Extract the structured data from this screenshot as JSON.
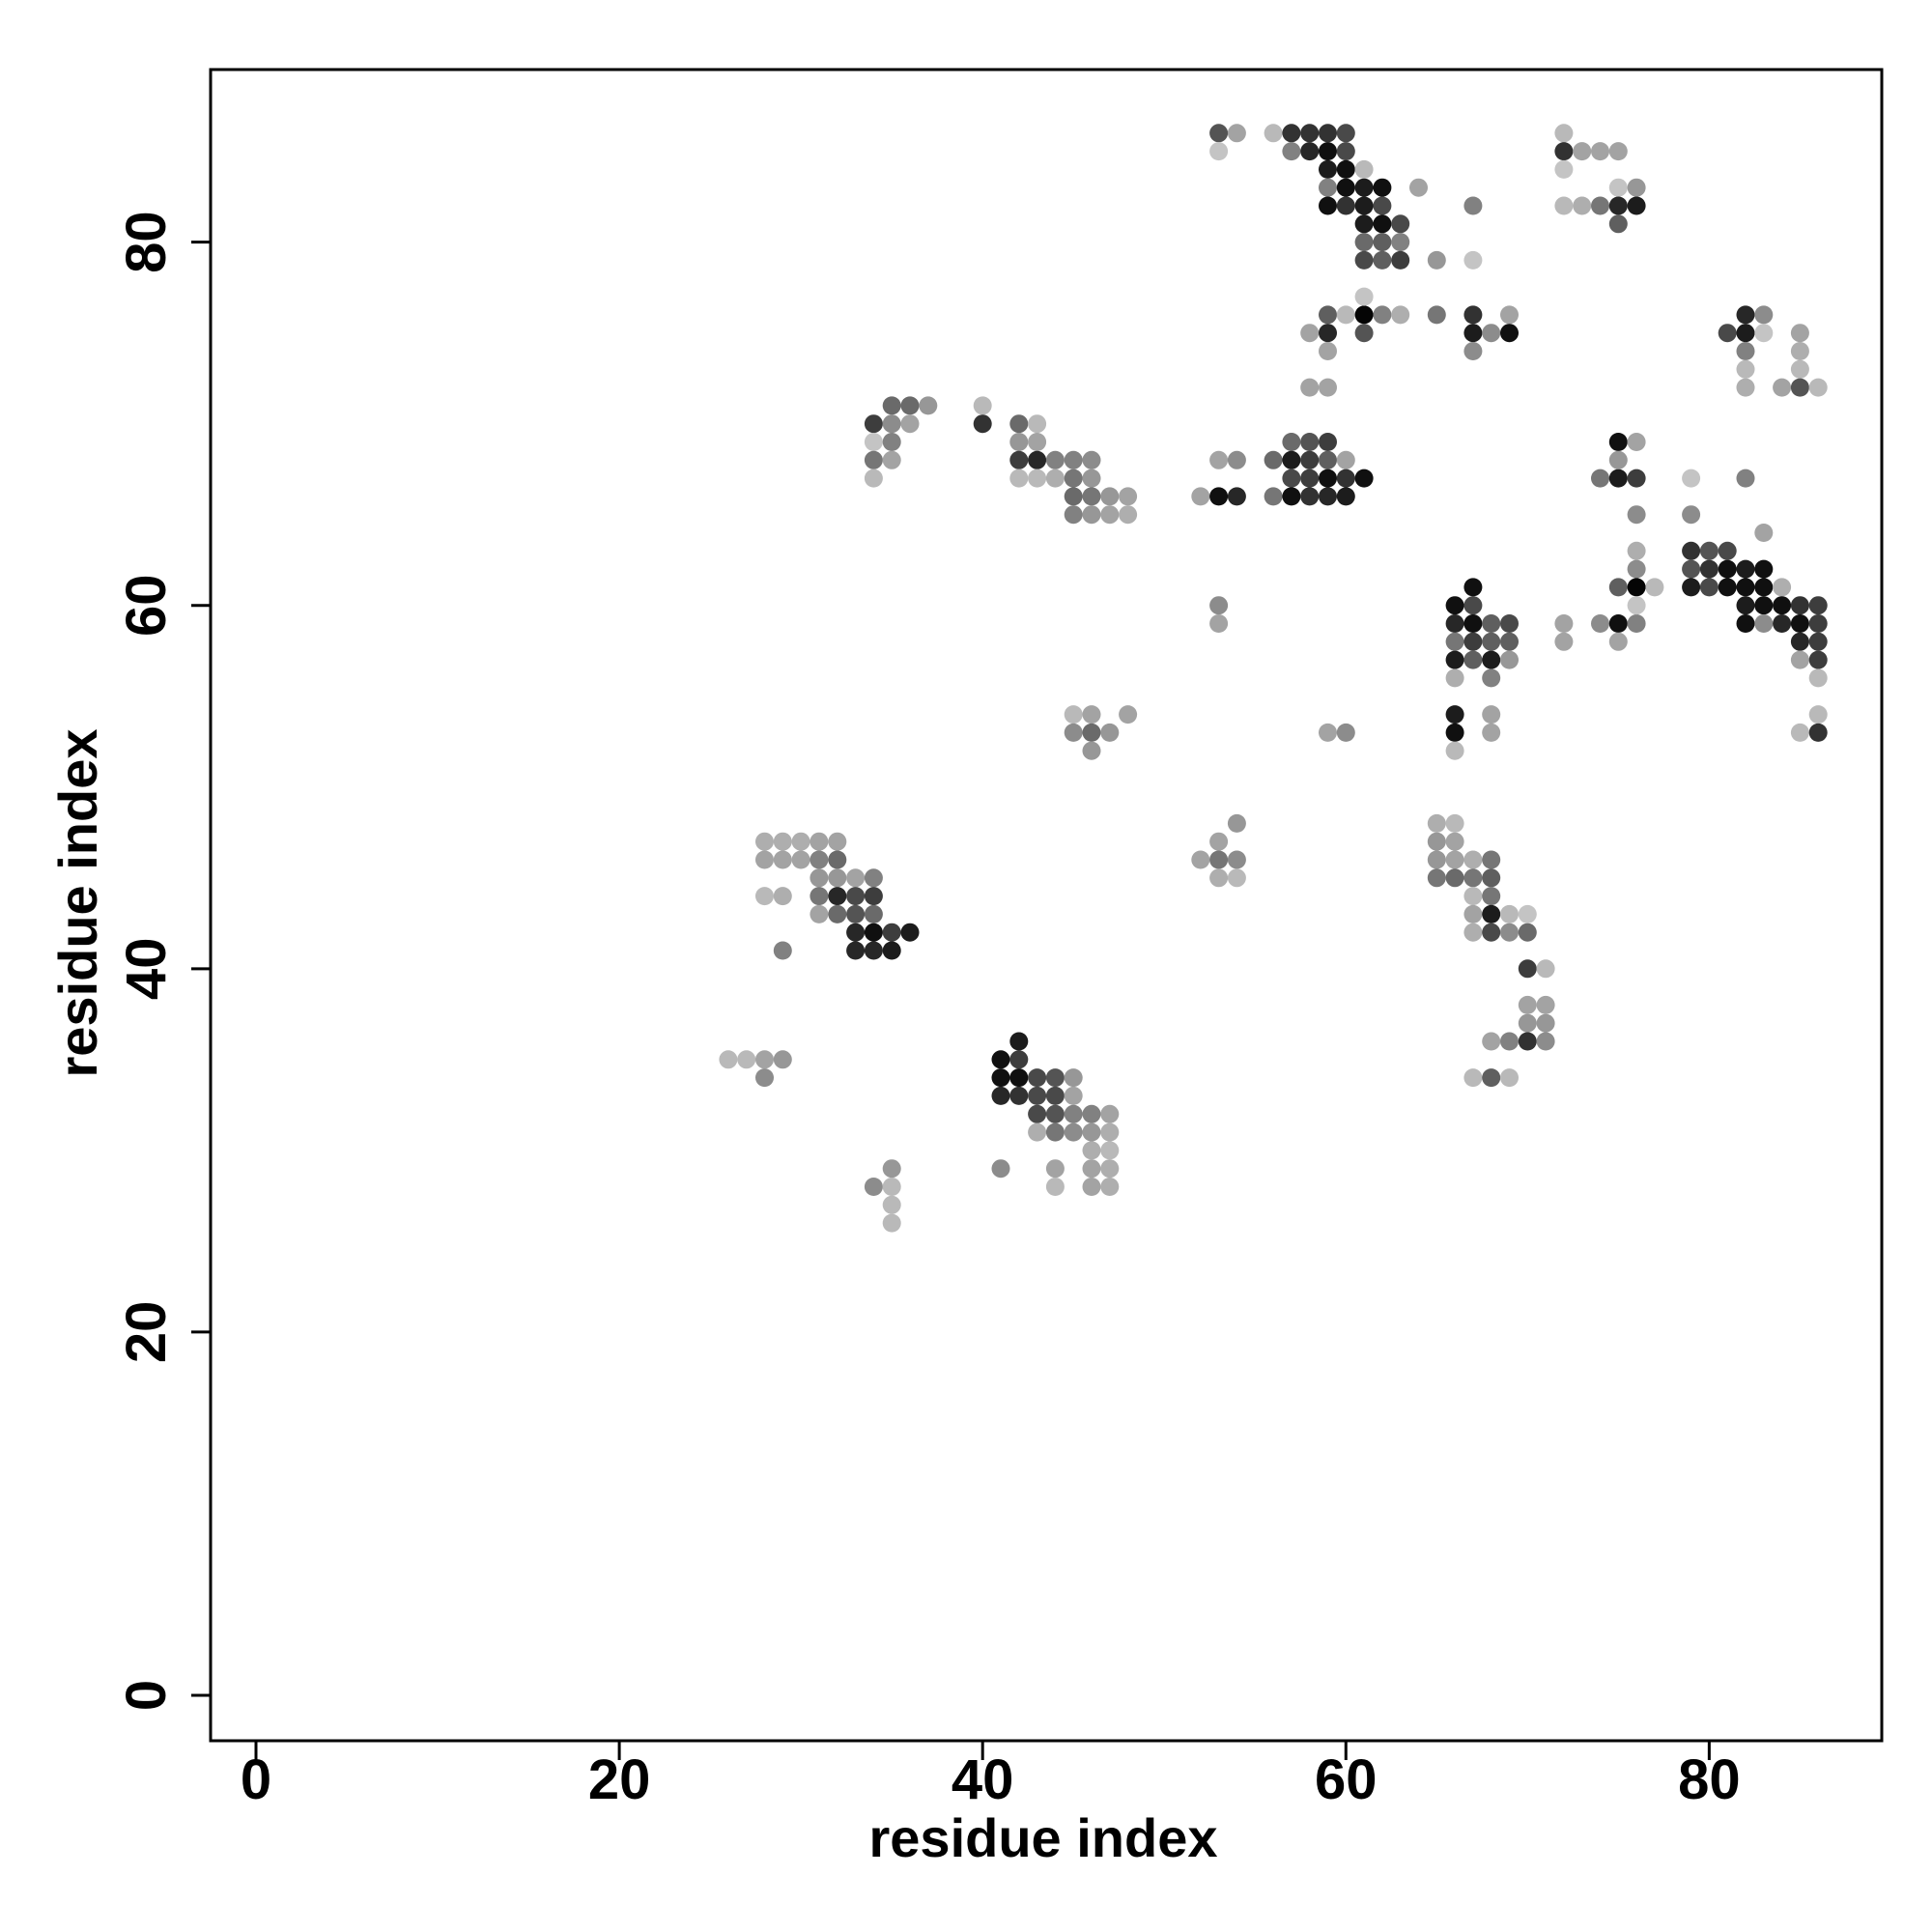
{
  "chart_data": {
    "type": "scatter",
    "title": "",
    "xlabel": "residue index",
    "ylabel": "residue index",
    "xlim": [
      -2.5,
      89.5
    ],
    "ylim": [
      -2.5,
      89.5
    ],
    "xticks": [
      0,
      20,
      40,
      60,
      80
    ],
    "yticks": [
      0,
      20,
      40,
      60,
      80
    ],
    "grid": false,
    "legend": "none",
    "value_meaning": "gray intensity, 1 = black (strong), 0 = very light",
    "point_format": [
      "x",
      "y",
      "intensity"
    ],
    "points": [
      [
        53,
        86,
        0.65
      ],
      [
        54,
        86,
        0.3
      ],
      [
        53,
        85,
        0.15
      ],
      [
        56,
        86,
        0.2
      ],
      [
        57,
        86,
        0.8
      ],
      [
        58,
        86,
        0.8
      ],
      [
        59,
        86,
        0.8
      ],
      [
        60,
        86,
        0.7
      ],
      [
        57,
        85,
        0.45
      ],
      [
        58,
        85,
        0.85
      ],
      [
        59,
        85,
        0.95
      ],
      [
        60,
        85,
        0.7
      ],
      [
        59,
        84,
        0.9
      ],
      [
        60,
        84,
        0.95
      ],
      [
        61,
        84,
        0.2
      ],
      [
        59,
        83,
        0.45
      ],
      [
        60,
        83,
        0.95
      ],
      [
        61,
        83,
        0.9
      ],
      [
        62,
        83,
        0.95
      ],
      [
        64,
        83,
        0.3
      ],
      [
        59,
        82,
        0.95
      ],
      [
        60,
        82,
        0.8
      ],
      [
        61,
        82,
        0.9
      ],
      [
        62,
        82,
        0.7
      ],
      [
        61,
        81,
        0.9
      ],
      [
        62,
        81,
        0.95
      ],
      [
        63,
        81,
        0.7
      ],
      [
        61,
        80,
        0.55
      ],
      [
        62,
        80,
        0.6
      ],
      [
        63,
        80,
        0.45
      ],
      [
        61,
        79,
        0.7
      ],
      [
        62,
        79,
        0.6
      ],
      [
        63,
        79,
        0.75
      ],
      [
        65,
        79,
        0.35
      ],
      [
        72,
        86,
        0.2
      ],
      [
        72,
        85,
        0.8
      ],
      [
        73,
        85,
        0.3
      ],
      [
        74,
        85,
        0.3
      ],
      [
        75,
        85,
        0.3
      ],
      [
        72,
        84,
        0.15
      ],
      [
        75,
        83,
        0.15
      ],
      [
        76,
        83,
        0.35
      ],
      [
        72,
        82,
        0.2
      ],
      [
        73,
        82,
        0.25
      ],
      [
        74,
        82,
        0.5
      ],
      [
        75,
        82,
        0.85
      ],
      [
        76,
        82,
        0.9
      ],
      [
        75,
        81,
        0.6
      ],
      [
        67,
        82,
        0.45
      ],
      [
        67,
        79,
        0.15
      ],
      [
        59,
        76,
        0.6
      ],
      [
        60,
        76,
        0.2
      ],
      [
        61,
        76,
        1.0
      ],
      [
        62,
        76,
        0.45
      ],
      [
        63,
        76,
        0.25
      ],
      [
        65,
        76,
        0.5
      ],
      [
        58,
        75,
        0.3
      ],
      [
        59,
        75,
        0.85
      ],
      [
        61,
        75,
        0.65
      ],
      [
        59,
        74,
        0.3
      ],
      [
        58,
        72,
        0.3
      ],
      [
        59,
        72,
        0.3
      ],
      [
        61,
        77,
        0.15
      ],
      [
        67,
        76,
        0.8
      ],
      [
        69,
        76,
        0.3
      ],
      [
        67,
        75,
        0.9
      ],
      [
        68,
        75,
        0.4
      ],
      [
        69,
        75,
        0.95
      ],
      [
        67,
        74,
        0.4
      ],
      [
        82,
        76,
        0.85
      ],
      [
        83,
        76,
        0.4
      ],
      [
        81,
        75,
        0.7
      ],
      [
        82,
        75,
        0.9
      ],
      [
        83,
        75,
        0.15
      ],
      [
        82,
        74,
        0.45
      ],
      [
        82,
        73,
        0.2
      ],
      [
        82,
        72,
        0.25
      ],
      [
        85,
        75,
        0.3
      ],
      [
        85,
        74,
        0.25
      ],
      [
        85,
        73,
        0.2
      ],
      [
        84,
        72,
        0.3
      ],
      [
        85,
        72,
        0.65
      ],
      [
        86,
        72,
        0.2
      ],
      [
        35,
        71,
        0.55
      ],
      [
        36,
        71,
        0.55
      ],
      [
        37,
        71,
        0.35
      ],
      [
        40,
        71,
        0.2
      ],
      [
        34,
        70,
        0.75
      ],
      [
        35,
        70,
        0.4
      ],
      [
        36,
        70,
        0.3
      ],
      [
        40,
        70,
        0.8
      ],
      [
        42,
        70,
        0.55
      ],
      [
        43,
        70,
        0.2
      ],
      [
        42,
        69,
        0.35
      ],
      [
        43,
        69,
        0.3
      ],
      [
        34,
        69,
        0.15
      ],
      [
        35,
        69,
        0.45
      ],
      [
        34,
        68,
        0.5
      ],
      [
        35,
        68,
        0.3
      ],
      [
        34,
        67,
        0.2
      ],
      [
        42,
        68,
        0.75
      ],
      [
        43,
        68,
        0.85
      ],
      [
        44,
        68,
        0.45
      ],
      [
        45,
        68,
        0.45
      ],
      [
        46,
        68,
        0.4
      ],
      [
        42,
        67,
        0.2
      ],
      [
        43,
        67,
        0.2
      ],
      [
        44,
        67,
        0.25
      ],
      [
        45,
        67,
        0.5
      ],
      [
        46,
        67,
        0.35
      ],
      [
        45,
        66,
        0.55
      ],
      [
        46,
        66,
        0.5
      ],
      [
        47,
        66,
        0.35
      ],
      [
        48,
        66,
        0.3
      ],
      [
        45,
        65,
        0.45
      ],
      [
        46,
        65,
        0.35
      ],
      [
        47,
        65,
        0.3
      ],
      [
        48,
        65,
        0.25
      ],
      [
        53,
        68,
        0.3
      ],
      [
        54,
        68,
        0.4
      ],
      [
        52,
        66,
        0.3
      ],
      [
        53,
        66,
        0.95
      ],
      [
        54,
        66,
        0.85
      ],
      [
        57,
        69,
        0.55
      ],
      [
        58,
        69,
        0.65
      ],
      [
        59,
        69,
        0.75
      ],
      [
        56,
        68,
        0.55
      ],
      [
        57,
        68,
        0.9
      ],
      [
        58,
        68,
        0.75
      ],
      [
        59,
        68,
        0.6
      ],
      [
        60,
        68,
        0.3
      ],
      [
        57,
        67,
        0.7
      ],
      [
        58,
        67,
        0.75
      ],
      [
        59,
        67,
        0.95
      ],
      [
        60,
        67,
        0.8
      ],
      [
        61,
        67,
        0.95
      ],
      [
        56,
        66,
        0.5
      ],
      [
        57,
        66,
        0.95
      ],
      [
        58,
        66,
        0.8
      ],
      [
        59,
        66,
        0.85
      ],
      [
        60,
        66,
        0.9
      ],
      [
        53,
        60,
        0.4
      ],
      [
        53,
        59,
        0.3
      ],
      [
        75,
        69,
        0.95
      ],
      [
        76,
        69,
        0.3
      ],
      [
        74,
        67,
        0.5
      ],
      [
        75,
        67,
        0.9
      ],
      [
        76,
        67,
        0.75
      ],
      [
        75,
        68,
        0.35
      ],
      [
        79,
        67,
        0.15
      ],
      [
        82,
        67,
        0.45
      ],
      [
        76,
        65,
        0.4
      ],
      [
        79,
        65,
        0.4
      ],
      [
        83,
        64,
        0.3
      ],
      [
        76,
        63,
        0.25
      ],
      [
        76,
        62,
        0.4
      ],
      [
        75,
        61,
        0.6
      ],
      [
        76,
        61,
        1.0
      ],
      [
        77,
        61,
        0.2
      ],
      [
        72,
        59,
        0.3
      ],
      [
        74,
        59,
        0.4
      ],
      [
        75,
        59,
        0.95
      ],
      [
        76,
        59,
        0.45
      ],
      [
        76,
        60,
        0.15
      ],
      [
        72,
        58,
        0.3
      ],
      [
        75,
        58,
        0.3
      ],
      [
        79,
        63,
        0.8
      ],
      [
        80,
        63,
        0.65
      ],
      [
        81,
        63,
        0.7
      ],
      [
        79,
        62,
        0.65
      ],
      [
        80,
        62,
        0.8
      ],
      [
        81,
        62,
        0.95
      ],
      [
        82,
        62,
        0.9
      ],
      [
        83,
        62,
        0.95
      ],
      [
        79,
        61,
        0.9
      ],
      [
        80,
        61,
        0.7
      ],
      [
        81,
        61,
        0.95
      ],
      [
        82,
        61,
        0.95
      ],
      [
        83,
        61,
        0.95
      ],
      [
        84,
        61,
        0.25
      ],
      [
        82,
        60,
        0.9
      ],
      [
        83,
        60,
        0.95
      ],
      [
        84,
        60,
        0.95
      ],
      [
        85,
        60,
        0.8
      ],
      [
        86,
        60,
        0.75
      ],
      [
        82,
        59,
        0.95
      ],
      [
        83,
        59,
        0.4
      ],
      [
        84,
        59,
        0.85
      ],
      [
        85,
        59,
        0.95
      ],
      [
        86,
        59,
        0.75
      ],
      [
        85,
        58,
        0.85
      ],
      [
        86,
        58,
        0.75
      ],
      [
        85,
        57,
        0.3
      ],
      [
        86,
        57,
        0.75
      ],
      [
        86,
        56,
        0.2
      ],
      [
        86,
        54,
        0.2
      ],
      [
        85,
        53,
        0.2
      ],
      [
        86,
        53,
        0.8
      ],
      [
        66,
        60,
        0.95
      ],
      [
        67,
        60,
        0.7
      ],
      [
        67,
        61,
        0.95
      ],
      [
        66,
        59,
        0.85
      ],
      [
        67,
        59,
        0.95
      ],
      [
        68,
        59,
        0.6
      ],
      [
        69,
        59,
        0.7
      ],
      [
        66,
        58,
        0.5
      ],
      [
        67,
        58,
        0.75
      ],
      [
        68,
        58,
        0.6
      ],
      [
        69,
        58,
        0.6
      ],
      [
        66,
        57,
        0.9
      ],
      [
        67,
        57,
        0.6
      ],
      [
        68,
        57,
        0.9
      ],
      [
        69,
        57,
        0.35
      ],
      [
        66,
        56,
        0.25
      ],
      [
        68,
        56,
        0.45
      ],
      [
        66,
        54,
        0.9
      ],
      [
        66,
        53,
        0.95
      ],
      [
        66,
        52,
        0.2
      ],
      [
        68,
        54,
        0.3
      ],
      [
        68,
        53,
        0.3
      ],
      [
        59,
        53,
        0.3
      ],
      [
        60,
        53,
        0.4
      ],
      [
        45,
        54,
        0.2
      ],
      [
        46,
        54,
        0.3
      ],
      [
        48,
        54,
        0.3
      ],
      [
        45,
        53,
        0.4
      ],
      [
        46,
        53,
        0.55
      ],
      [
        47,
        53,
        0.35
      ],
      [
        46,
        52,
        0.35
      ],
      [
        65,
        48,
        0.25
      ],
      [
        66,
        48,
        0.2
      ],
      [
        65,
        47,
        0.35
      ],
      [
        66,
        47,
        0.3
      ],
      [
        65,
        46,
        0.35
      ],
      [
        66,
        46,
        0.3
      ],
      [
        67,
        46,
        0.25
      ],
      [
        68,
        46,
        0.5
      ],
      [
        65,
        45,
        0.5
      ],
      [
        66,
        45,
        0.55
      ],
      [
        67,
        45,
        0.5
      ],
      [
        68,
        45,
        0.6
      ],
      [
        67,
        44,
        0.2
      ],
      [
        68,
        44,
        0.5
      ],
      [
        67,
        43,
        0.3
      ],
      [
        68,
        43,
        0.9
      ],
      [
        69,
        43,
        0.2
      ],
      [
        70,
        43,
        0.15
      ],
      [
        67,
        42,
        0.25
      ],
      [
        68,
        42,
        0.7
      ],
      [
        69,
        42,
        0.4
      ],
      [
        70,
        42,
        0.55
      ],
      [
        70,
        40,
        0.75
      ],
      [
        71,
        40,
        0.2
      ],
      [
        70,
        38,
        0.3
      ],
      [
        71,
        38,
        0.3
      ],
      [
        70,
        37,
        0.35
      ],
      [
        71,
        37,
        0.35
      ],
      [
        68,
        36,
        0.3
      ],
      [
        69,
        36,
        0.45
      ],
      [
        70,
        36,
        0.8
      ],
      [
        71,
        36,
        0.4
      ],
      [
        67,
        34,
        0.2
      ],
      [
        68,
        34,
        0.6
      ],
      [
        69,
        34,
        0.2
      ],
      [
        54,
        48,
        0.35
      ],
      [
        53,
        47,
        0.3
      ],
      [
        52,
        46,
        0.3
      ],
      [
        53,
        46,
        0.5
      ],
      [
        54,
        46,
        0.4
      ],
      [
        53,
        45,
        0.25
      ],
      [
        54,
        45,
        0.2
      ],
      [
        28,
        47,
        0.25
      ],
      [
        29,
        47,
        0.25
      ],
      [
        30,
        47,
        0.25
      ],
      [
        31,
        47,
        0.3
      ],
      [
        32,
        47,
        0.3
      ],
      [
        28,
        46,
        0.3
      ],
      [
        29,
        46,
        0.3
      ],
      [
        30,
        46,
        0.3
      ],
      [
        31,
        46,
        0.45
      ],
      [
        32,
        46,
        0.55
      ],
      [
        31,
        45,
        0.35
      ],
      [
        32,
        45,
        0.35
      ],
      [
        33,
        45,
        0.3
      ],
      [
        34,
        45,
        0.45
      ],
      [
        28,
        44,
        0.2
      ],
      [
        29,
        44,
        0.25
      ],
      [
        31,
        44,
        0.5
      ],
      [
        32,
        44,
        0.85
      ],
      [
        33,
        44,
        0.7
      ],
      [
        34,
        44,
        0.75
      ],
      [
        31,
        43,
        0.3
      ],
      [
        32,
        43,
        0.55
      ],
      [
        33,
        43,
        0.65
      ],
      [
        34,
        43,
        0.55
      ],
      [
        33,
        42,
        0.85
      ],
      [
        34,
        42,
        0.95
      ],
      [
        35,
        42,
        0.75
      ],
      [
        36,
        42,
        0.9
      ],
      [
        33,
        41,
        0.85
      ],
      [
        34,
        41,
        0.85
      ],
      [
        35,
        41,
        0.9
      ],
      [
        29,
        41,
        0.45
      ],
      [
        26,
        35,
        0.2
      ],
      [
        27,
        35,
        0.2
      ],
      [
        28,
        35,
        0.3
      ],
      [
        29,
        35,
        0.35
      ],
      [
        28,
        34,
        0.4
      ],
      [
        42,
        36,
        0.9
      ],
      [
        41,
        35,
        0.95
      ],
      [
        42,
        35,
        0.75
      ],
      [
        41,
        34,
        0.95
      ],
      [
        42,
        34,
        0.95
      ],
      [
        43,
        34,
        0.7
      ],
      [
        44,
        34,
        0.65
      ],
      [
        45,
        34,
        0.35
      ],
      [
        41,
        33,
        0.85
      ],
      [
        42,
        33,
        0.8
      ],
      [
        43,
        33,
        0.7
      ],
      [
        44,
        33,
        0.7
      ],
      [
        45,
        33,
        0.3
      ],
      [
        43,
        32,
        0.7
      ],
      [
        44,
        32,
        0.65
      ],
      [
        45,
        32,
        0.45
      ],
      [
        46,
        32,
        0.45
      ],
      [
        47,
        32,
        0.3
      ],
      [
        43,
        31,
        0.25
      ],
      [
        44,
        31,
        0.5
      ],
      [
        45,
        31,
        0.4
      ],
      [
        46,
        31,
        0.35
      ],
      [
        47,
        31,
        0.25
      ],
      [
        46,
        30,
        0.25
      ],
      [
        47,
        30,
        0.2
      ],
      [
        41,
        29,
        0.4
      ],
      [
        44,
        29,
        0.3
      ],
      [
        46,
        29,
        0.3
      ],
      [
        47,
        29,
        0.25
      ],
      [
        44,
        28,
        0.2
      ],
      [
        46,
        28,
        0.3
      ],
      [
        47,
        28,
        0.25
      ],
      [
        35,
        29,
        0.35
      ],
      [
        34,
        28,
        0.4
      ],
      [
        35,
        28,
        0.2
      ],
      [
        35,
        27,
        0.2
      ],
      [
        35,
        26,
        0.2
      ]
    ]
  }
}
